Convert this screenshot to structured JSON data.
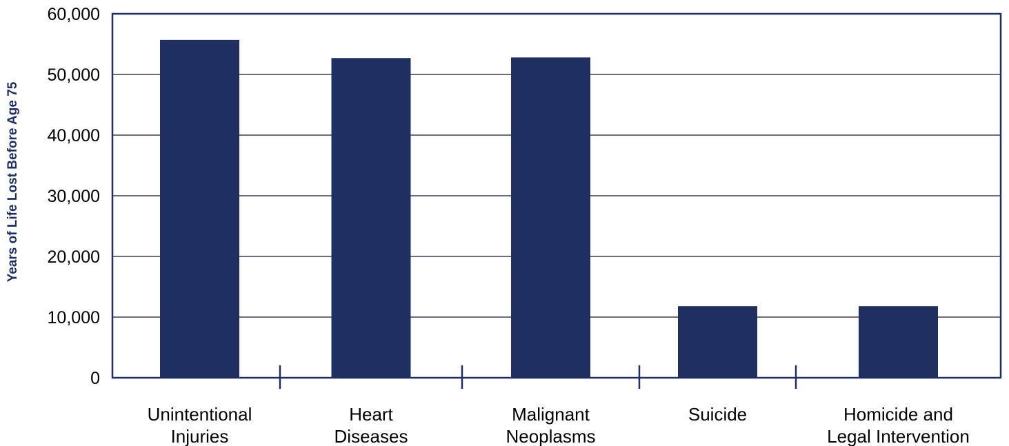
{
  "chart_data": {
    "type": "bar",
    "title": "",
    "xlabel": "",
    "ylabel": "Years of Life Lost Before Age 75",
    "ylim": [
      0,
      60000
    ],
    "yticks": [
      0,
      10000,
      20000,
      30000,
      40000,
      50000,
      60000
    ],
    "ytick_labels": [
      "0",
      "10,000",
      "20,000",
      "30,000",
      "40,000",
      "50,000",
      "60,000"
    ],
    "grid": true,
    "categories": [
      [
        "Unintentional",
        "Injuries"
      ],
      [
        "Heart",
        "Diseases"
      ],
      [
        "Malignant",
        "Neoplasms"
      ],
      [
        "Suicide"
      ],
      [
        "Homicide and",
        "Legal Intervention"
      ]
    ],
    "values": [
      55700,
      52700,
      52800,
      11800,
      11800
    ],
    "colors": {
      "bar": "#1f3060",
      "axis": "#1f3060",
      "grid": "#6b6b80",
      "ylabel": "#1f3060"
    }
  }
}
